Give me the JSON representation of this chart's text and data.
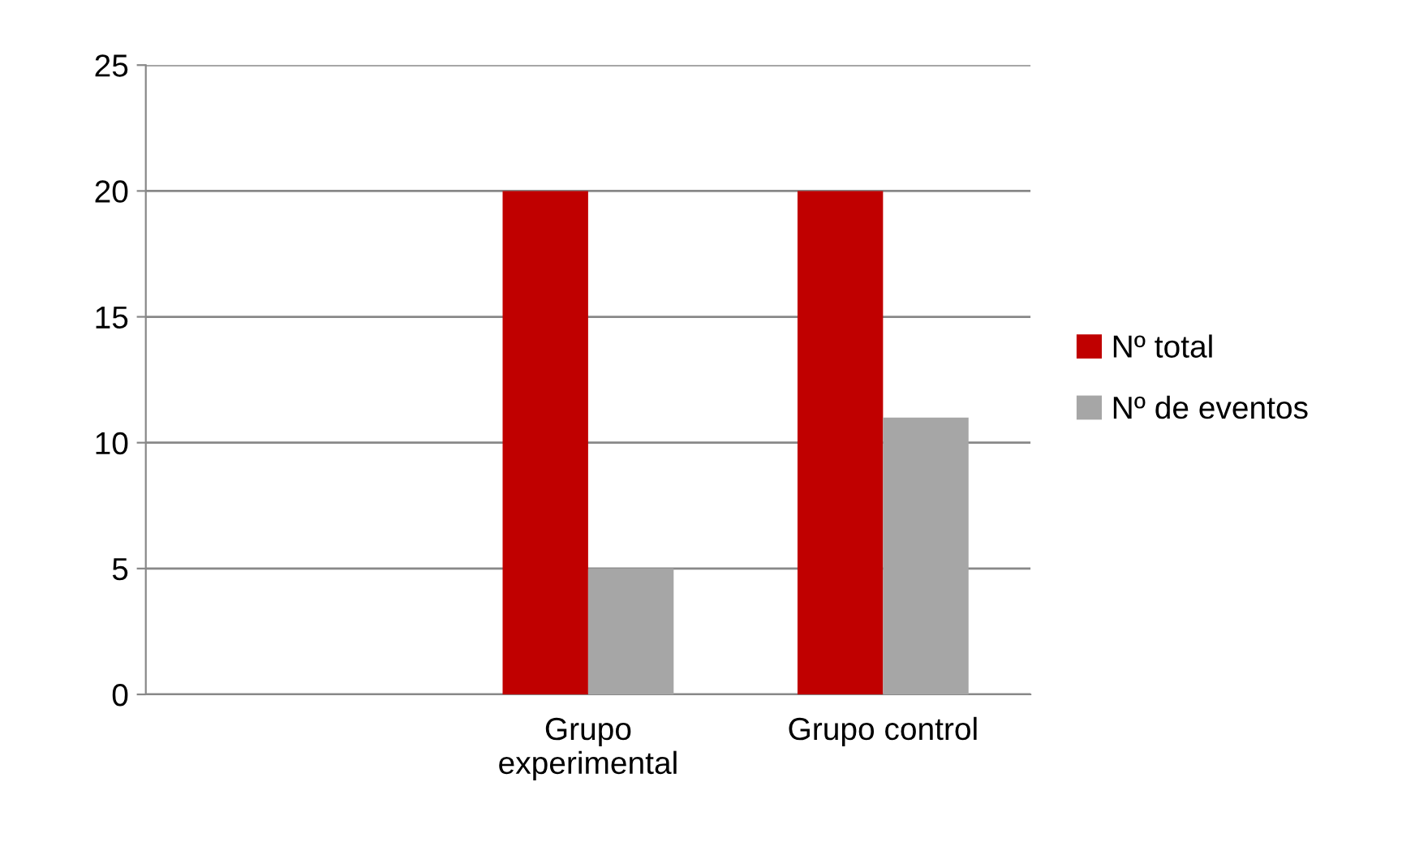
{
  "chart_data": {
    "type": "bar",
    "categories": [
      null,
      "Grupo\nexperimental",
      "Grupo control"
    ],
    "series": [
      {
        "name": "Nº total",
        "color": "#c00000",
        "values": [
          null,
          20,
          20
        ]
      },
      {
        "name": "Nº de eventos",
        "color": "#a6a6a6",
        "values": [
          null,
          5,
          11
        ]
      }
    ],
    "ylim": [
      0,
      25
    ],
    "yticks": [
      0,
      5,
      10,
      15,
      20,
      25
    ],
    "grid": "y",
    "legend": "right"
  }
}
